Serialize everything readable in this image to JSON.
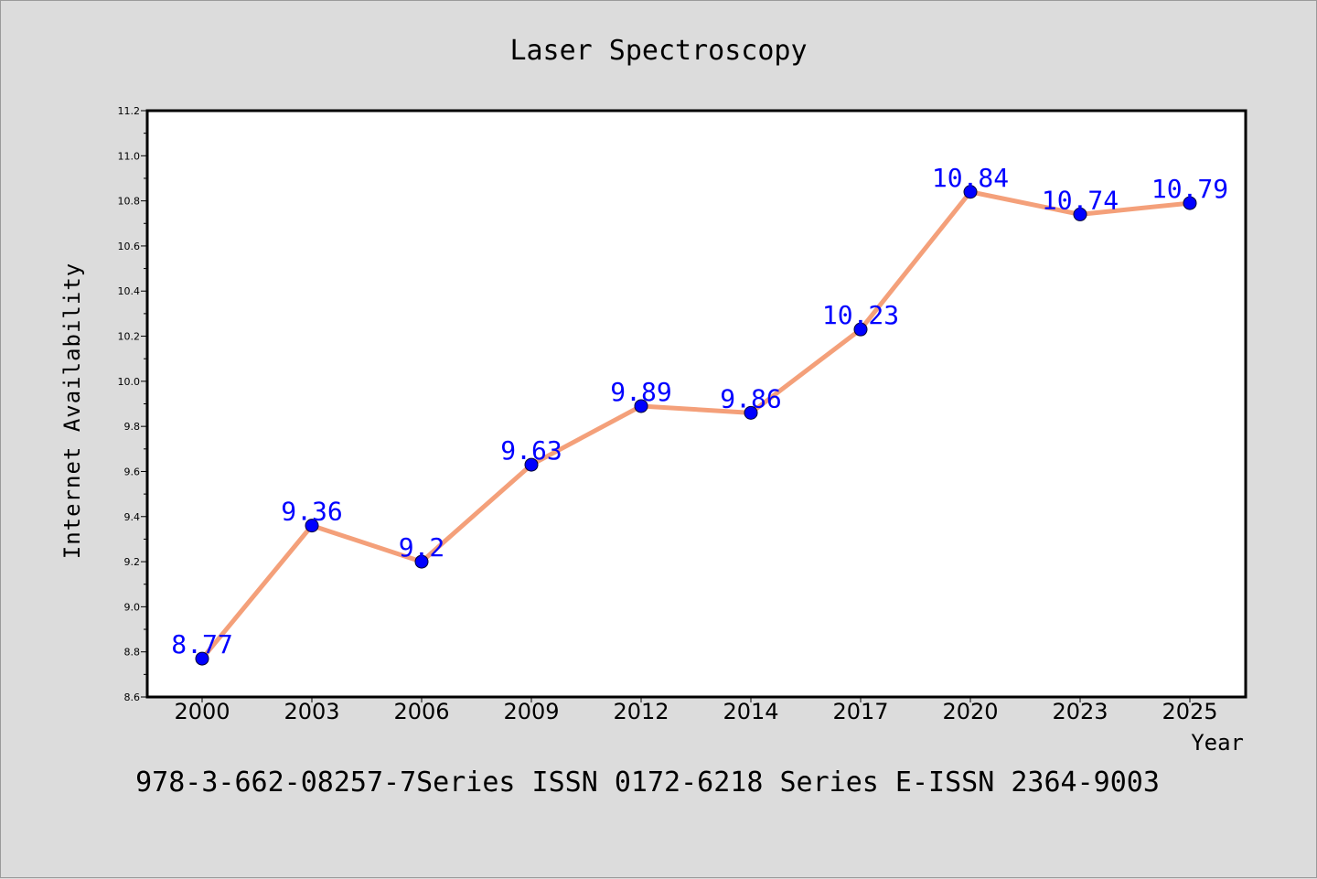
{
  "chart_data": {
    "type": "line",
    "title": "Laser Spectroscopy",
    "xlabel": "Year",
    "ylabel": "Internet Availability",
    "categories": [
      "2000",
      "2003",
      "2006",
      "2009",
      "2012",
      "2014",
      "2017",
      "2020",
      "2023",
      "2025"
    ],
    "series": [
      {
        "values": [
          8.77,
          9.36,
          9.2,
          9.63,
          9.89,
          9.86,
          10.23,
          10.84,
          10.74,
          10.79
        ],
        "data_labels": [
          "8.77",
          "9.36",
          "9.2",
          "9.63",
          "9.89",
          "9.86",
          "10.23",
          "10.84",
          "10.74",
          "10.79"
        ],
        "line_color": "#f4a07a",
        "marker_color": "#0000ff"
      }
    ],
    "ylim": [
      8.6,
      11.2
    ],
    "yticks": [
      "8.6",
      "8.8",
      "9.0",
      "9.2",
      "9.4",
      "9.6",
      "9.8",
      "10.0",
      "10.2",
      "10.4",
      "10.6",
      "10.8",
      "11.0",
      "11.2"
    ],
    "grid": false,
    "legend": "none"
  },
  "footer": "978-3-662-08257-7Series ISSN 0172-6218 Series E-ISSN 2364-9003"
}
